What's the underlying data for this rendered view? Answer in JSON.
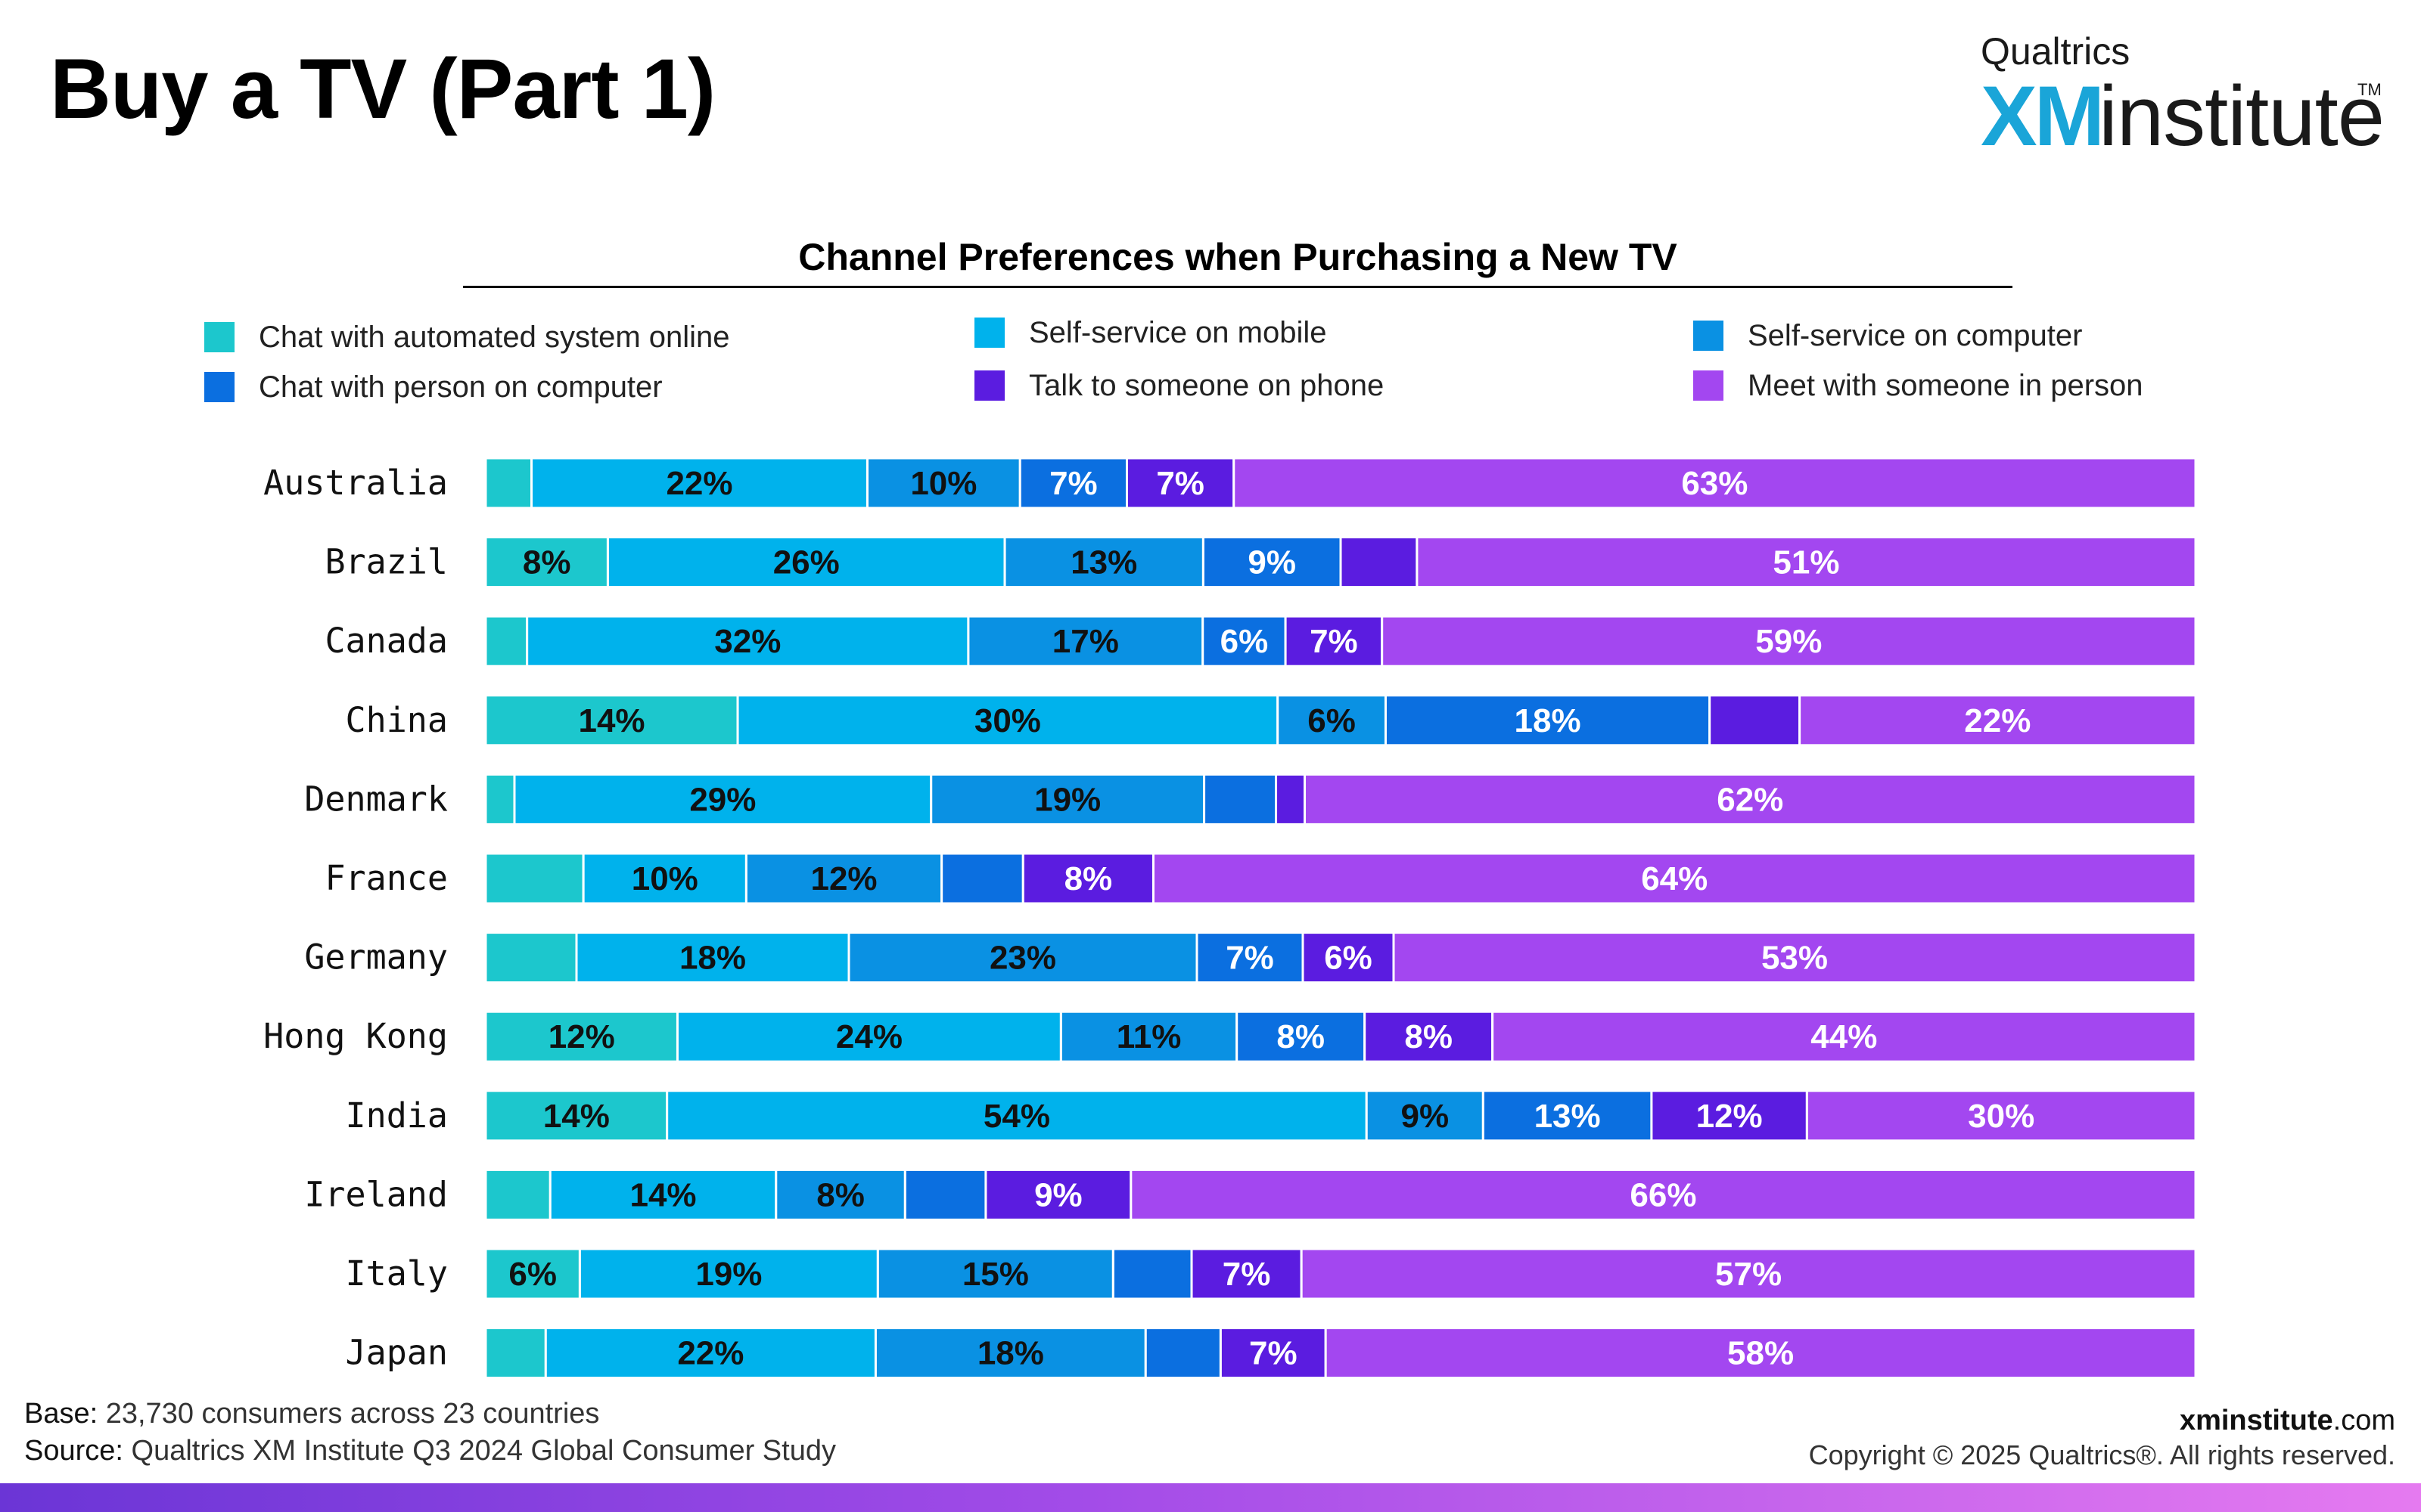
{
  "header": {
    "title": "Buy a TV (Part 1)"
  },
  "logo": {
    "top": "Qualtrics",
    "xm": "XM",
    "word": "institute",
    "tm": "TM"
  },
  "colors": {
    "chat_automated": "#1cc7cd",
    "self_service_mobile": "#00b2ec",
    "self_service_computer": "#0a91e3",
    "chat_person": "#0b6fe0",
    "talk_phone": "#5b1ce0",
    "meet_person": "#a347f0"
  },
  "chart_data": {
    "type": "bar",
    "orientation": "horizontal",
    "stacked": true,
    "title": "Channel Preferences when Purchasing a New TV",
    "categories": [
      "Australia",
      "Brazil",
      "Canada",
      "China",
      "Denmark",
      "France",
      "Germany",
      "Hong Kong",
      "India",
      "Ireland",
      "Italy",
      "Japan"
    ],
    "series": [
      {
        "name": "Chat with automated system online",
        "color": "#1cc7cd",
        "values": [
          3,
          8,
          3,
          14,
          2,
          6,
          6,
          12,
          14,
          4,
          6,
          4
        ],
        "labels": [
          "",
          "8%",
          "",
          "14%",
          "",
          "",
          "",
          "12%",
          "14%",
          "",
          "6%",
          ""
        ]
      },
      {
        "name": "Self-service on mobile",
        "color": "#00b2ec",
        "values": [
          22,
          26,
          32,
          30,
          29,
          10,
          18,
          24,
          54,
          14,
          19,
          22
        ],
        "labels": [
          "22%",
          "26%",
          "32%",
          "30%",
          "29%",
          "10%",
          "18%",
          "24%",
          "54%",
          "14%",
          "19%",
          "22%"
        ]
      },
      {
        "name": "Self-service on computer",
        "color": "#0a91e3",
        "values": [
          10,
          13,
          17,
          6,
          19,
          12,
          23,
          11,
          9,
          8,
          15,
          18
        ],
        "labels": [
          "10%",
          "13%",
          "17%",
          "6%",
          "19%",
          "12%",
          "23%",
          "11%",
          "9%",
          "8%",
          "15%",
          "18%"
        ]
      },
      {
        "name": "Chat with person on computer",
        "color": "#0b6fe0",
        "values": [
          7,
          9,
          6,
          18,
          5,
          5,
          7,
          8,
          13,
          5,
          5,
          5
        ],
        "labels": [
          "7%",
          "9%",
          "6%",
          "18%",
          "",
          "",
          "7%",
          "8%",
          "13%",
          "",
          "",
          ""
        ]
      },
      {
        "name": "Talk to someone on phone",
        "color": "#5b1ce0",
        "values": [
          7,
          5,
          7,
          5,
          2,
          8,
          6,
          8,
          12,
          9,
          7,
          7
        ],
        "labels": [
          "7%",
          "",
          "7%",
          "",
          "",
          "8%",
          "6%",
          "8%",
          "12%",
          "9%",
          "7%",
          "7%"
        ]
      },
      {
        "name": "Meet with someone in person",
        "color": "#a347f0",
        "values": [
          63,
          51,
          59,
          22,
          62,
          64,
          53,
          44,
          30,
          66,
          57,
          58
        ],
        "labels": [
          "63%",
          "51%",
          "59%",
          "22%",
          "62%",
          "64%",
          "53%",
          "44%",
          "30%",
          "66%",
          "57%",
          "58%"
        ]
      }
    ],
    "legend_order": [
      0,
      1,
      2,
      3,
      4,
      5
    ],
    "legend_position": "top"
  },
  "footer": {
    "base_label": "Base:",
    "base_text": "23,730 consumers across 23 countries",
    "source_label": "Source:",
    "source_text": "Qualtrics XM Institute Q3 2024 Global Consumer Study",
    "site_bold": "xminstitute",
    "site_suffix": ".com",
    "copyright": "Copyright © 2025 Qualtrics®. All rights reserved."
  }
}
